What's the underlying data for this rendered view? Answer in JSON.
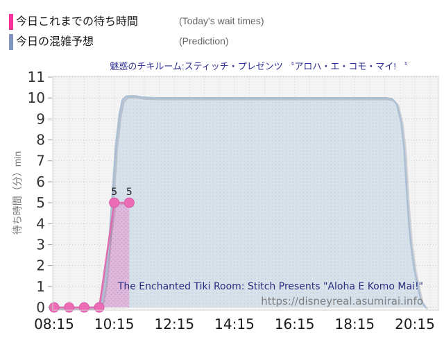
{
  "legend": {
    "items": [
      {
        "label_ja": "今日これまでの待ち時間",
        "label_en": "(Today's wait times)",
        "color": "#fb339c"
      },
      {
        "label_ja": "今日の混雑予想",
        "label_en": "(Prediction)",
        "color": "#8094bf"
      }
    ]
  },
  "title": "魅惑のチキルーム:スティッチ・プレゼンツ 〝アロハ・エ・コモ・マイ! 〝",
  "annotations": {
    "attraction_en": "The Enchanted Tiki Room: Stitch Presents \"Aloha E Komo Mai!\"",
    "url": "https://disneyreal.asumirai.info"
  },
  "chart_data": {
    "type": "area",
    "title": "魅惑のチキルーム:スティッチ・プレゼンツ 〝アロハ・エ・コモ・マイ! 〝",
    "xlabel": "",
    "ylabel": "待ち時間（分）min",
    "ylim": [
      0,
      11
    ],
    "y_ticks": [
      0,
      1,
      2,
      3,
      4,
      5,
      6,
      7,
      8,
      9,
      10,
      11
    ],
    "x_tick_labels": [
      "08:15",
      "10:15",
      "12:15",
      "14:15",
      "16:15",
      "18:15",
      "20:15"
    ],
    "x_tick_hours": [
      8.25,
      10.25,
      12.25,
      14.25,
      16.25,
      18.25,
      20.25
    ],
    "xlim_hours": [
      8.2,
      21.05
    ],
    "x_minor_grid_interval_hours": 0.5,
    "grid": true,
    "legend_position": "top-left",
    "series": [
      {
        "name": "今日これまでの待ち時間 (Today's wait times)",
        "type": "scatter-line-area",
        "color": "#e06cb2",
        "marker_color": "#ec6db5",
        "fill_color": "#dfb9dd",
        "points": [
          {
            "time": "08:15",
            "hour": 8.25,
            "wait": 0
          },
          {
            "time": "08:45",
            "hour": 8.75,
            "wait": 0
          },
          {
            "time": "09:15",
            "hour": 9.25,
            "wait": 0
          },
          {
            "time": "09:45",
            "hour": 9.75,
            "wait": 0
          },
          {
            "time": "10:15",
            "hour": 10.25,
            "wait": 5,
            "label": "5"
          },
          {
            "time": "10:45",
            "hour": 10.75,
            "wait": 5,
            "label": "5"
          }
        ]
      },
      {
        "name": "今日の混雑予想 (Prediction)",
        "type": "area",
        "color": "#aabfd4",
        "fill_color": "#d7e1ea",
        "points_hour_value": [
          [
            8.2,
            0
          ],
          [
            9.7,
            0
          ],
          [
            9.85,
            0.3
          ],
          [
            9.95,
            1.1
          ],
          [
            10.05,
            2.6
          ],
          [
            10.17,
            5.0
          ],
          [
            10.3,
            7.7
          ],
          [
            10.42,
            9.2
          ],
          [
            10.52,
            9.9
          ],
          [
            10.65,
            10.08
          ],
          [
            10.9,
            10.1
          ],
          [
            11.2,
            10.03
          ],
          [
            11.6,
            10
          ],
          [
            19.3,
            10
          ],
          [
            19.5,
            9.95
          ],
          [
            19.65,
            9.7
          ],
          [
            19.8,
            8.8
          ],
          [
            19.9,
            7.5
          ],
          [
            20.0,
            5.0
          ],
          [
            20.1,
            3.2
          ],
          [
            20.22,
            1.9
          ],
          [
            20.35,
            1.0
          ],
          [
            20.45,
            0.35
          ],
          [
            20.55,
            0.1
          ],
          [
            20.62,
            0
          ]
        ]
      }
    ]
  }
}
